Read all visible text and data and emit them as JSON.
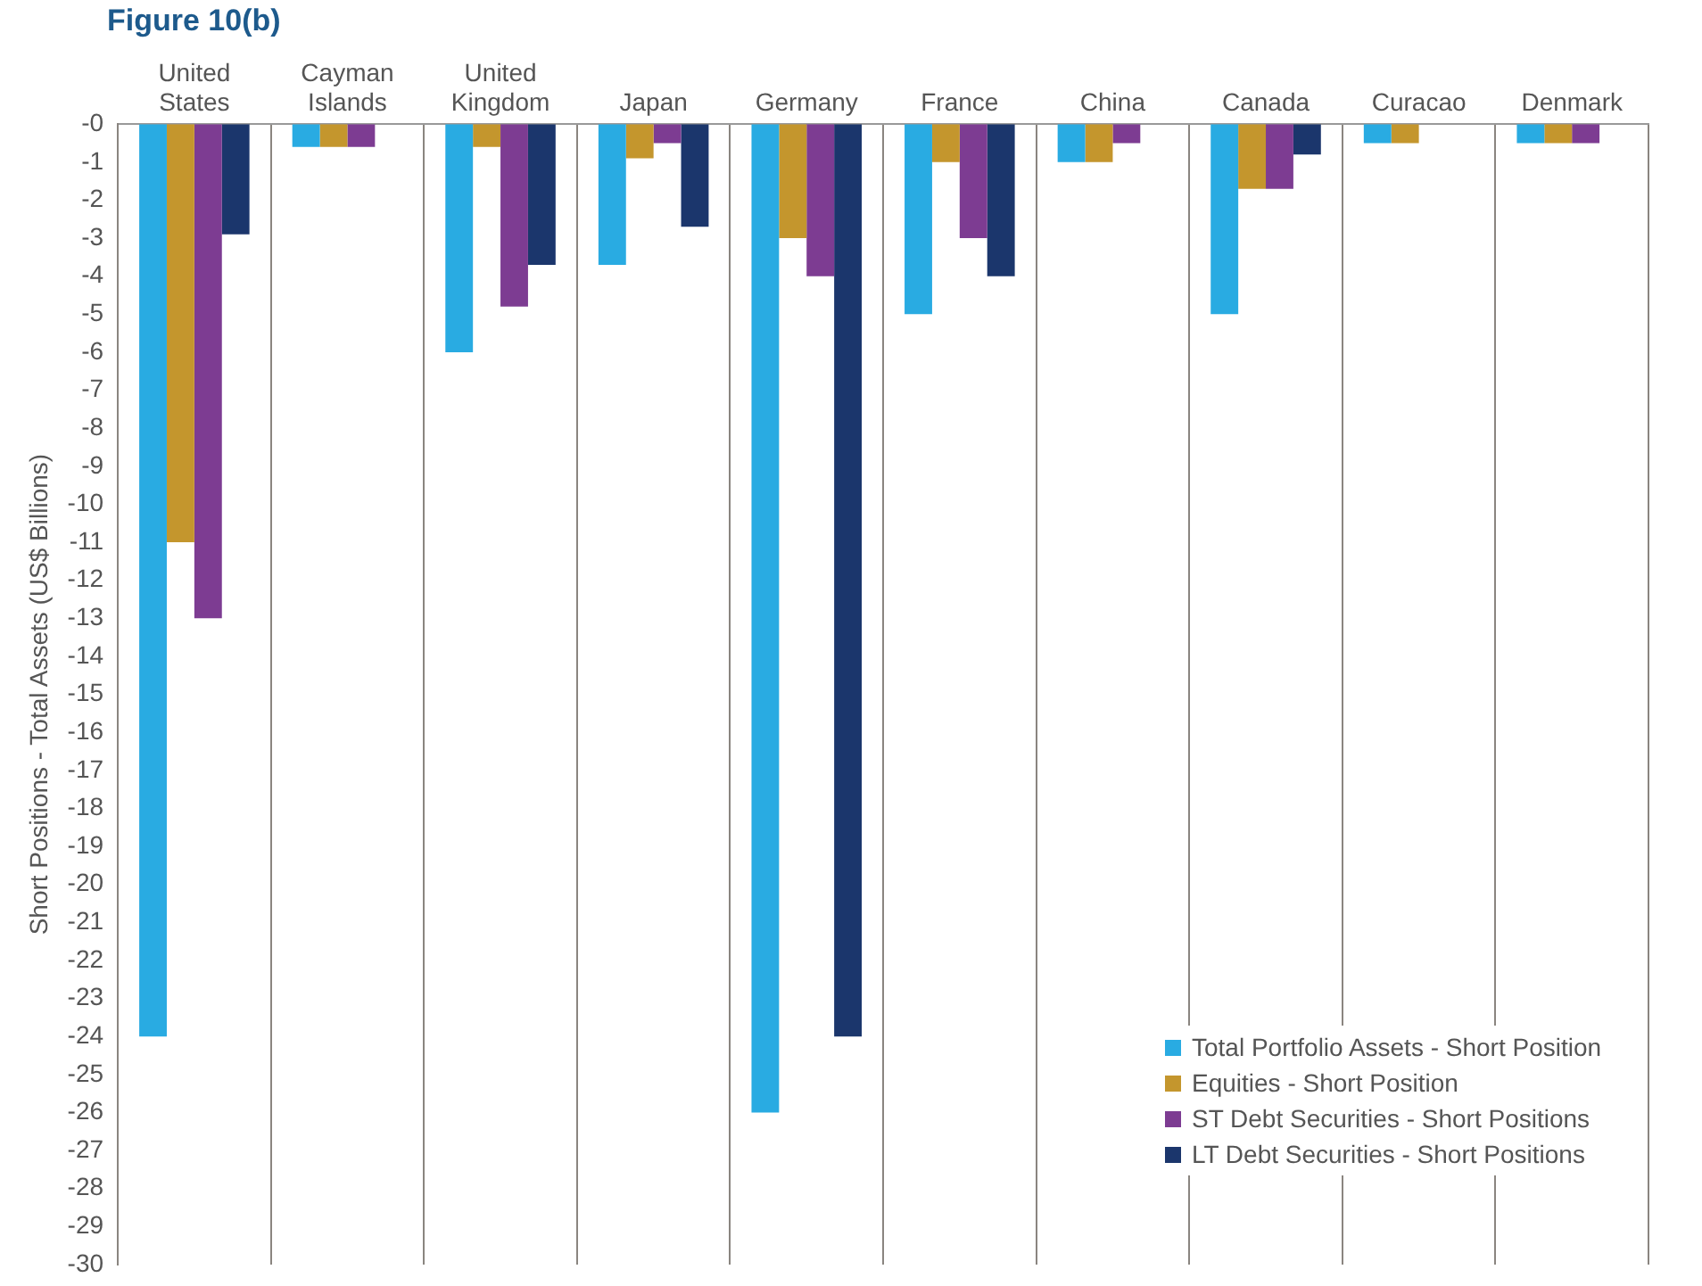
{
  "chart_data": {
    "type": "bar",
    "title": "Figure 10(b)",
    "ylabel": "Short Positions - Total Assets (US$ Billions)",
    "categories": [
      "United States",
      "Cayman Islands",
      "United Kingdom",
      "Japan",
      "Germany",
      "France",
      "China",
      "Canada",
      "Curacao",
      "Denmark"
    ],
    "series": [
      {
        "name": "Total Portfolio Assets - Short Position",
        "color": "#29abe2",
        "values": [
          -24,
          -0.6,
          -6,
          -3.7,
          -26,
          -5,
          -1,
          -5,
          -0.5,
          -0.5
        ]
      },
      {
        "name": "Equities - Short Position",
        "color": "#c4962d",
        "values": [
          -11,
          -0.6,
          -0.6,
          -0.9,
          -3,
          -1,
          -1,
          -1.7,
          -0.5,
          -0.5
        ]
      },
      {
        "name": "ST Debt Securities - Short Positions",
        "color": "#7d3c92",
        "values": [
          -13,
          -0.6,
          -4.8,
          -0.5,
          -4,
          -3,
          -0.5,
          -1.7,
          null,
          -0.5
        ]
      },
      {
        "name": "LT Debt Securities - Short Positions",
        "color": "#1b366c",
        "values": [
          -2.9,
          null,
          -3.7,
          -2.7,
          -24,
          -4,
          null,
          -0.8,
          null,
          null
        ]
      }
    ],
    "ylim": [
      -30,
      0
    ],
    "yticks": [
      {
        "value": 0,
        "label": "-0"
      },
      -1,
      -2,
      -3,
      -4,
      -5,
      -6,
      -7,
      -8,
      -9,
      -10,
      -11,
      -12,
      -13,
      -14,
      -15,
      -16,
      -17,
      -18,
      -19,
      -20,
      -21,
      -22,
      -23,
      -24,
      -25,
      -26,
      -27,
      -28,
      -29,
      -30
    ],
    "grid": "x",
    "legend": "bottom right"
  }
}
